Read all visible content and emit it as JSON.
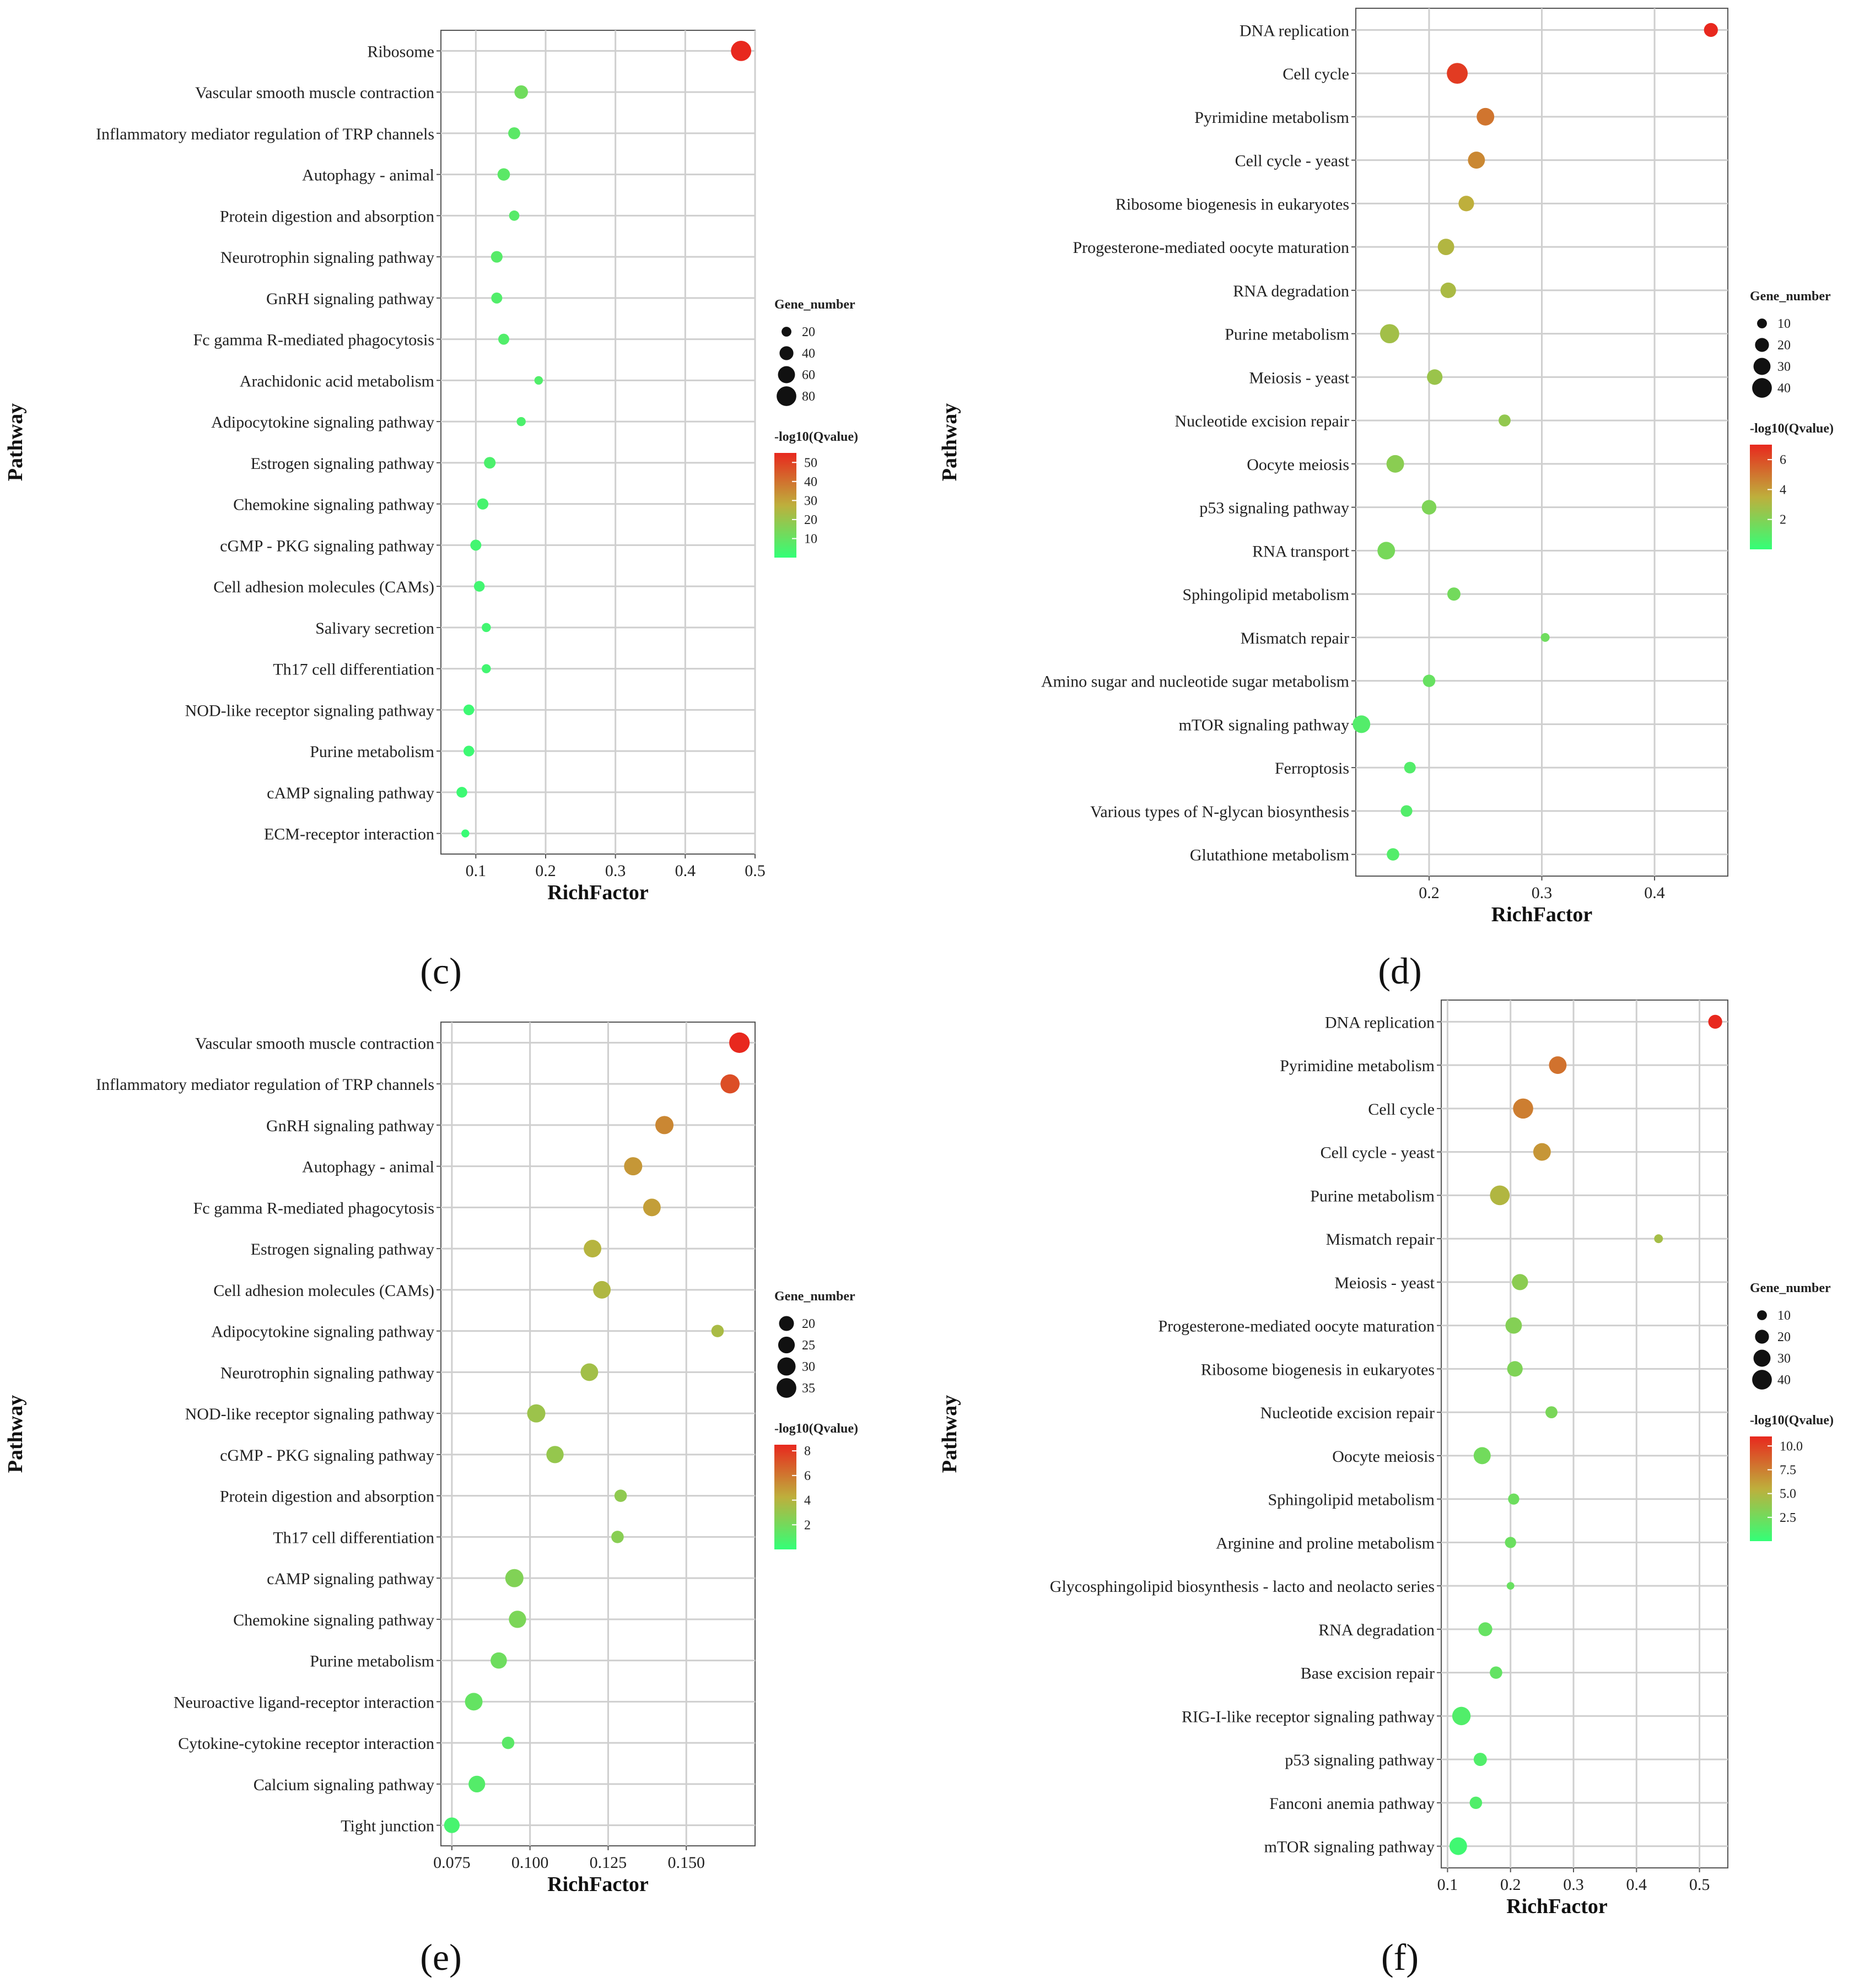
{
  "chart_data": [
    {
      "type": "scatter",
      "panel_label": "(c)",
      "xlabel": "RichFactor",
      "ylabel": "Pathway",
      "xlim": [
        0.05,
        0.5
      ],
      "xticks": [
        0.1,
        0.2,
        0.3,
        0.4,
        0.5
      ],
      "xtick_labels": [
        "0.1",
        "0.2",
        "0.3",
        "0.4",
        "0.5"
      ],
      "size_legend_title": "Gene_number",
      "size_legend": [
        20,
        40,
        60,
        80
      ],
      "size_range": [
        20,
        80
      ],
      "color_legend_title": "-log10(Qvalue)",
      "color_ticks": [
        50,
        40,
        30,
        20,
        10
      ],
      "color_tick_labels": [
        "50",
        "40",
        "30",
        "20",
        "10"
      ],
      "color_range": [
        0,
        55
      ],
      "color_low": "#33ff77",
      "color_high": "#e8281e",
      "points": [
        {
          "pathway": "Ribosome",
          "x": 0.48,
          "size": 85,
          "q": 55
        },
        {
          "pathway": "Vascular smooth muscle contraction",
          "x": 0.165,
          "size": 38,
          "q": 12
        },
        {
          "pathway": "Inflammatory mediator regulation of TRP channels",
          "x": 0.155,
          "size": 30,
          "q": 8
        },
        {
          "pathway": "Autophagy - animal",
          "x": 0.14,
          "size": 32,
          "q": 8
        },
        {
          "pathway": "Protein digestion and absorption",
          "x": 0.155,
          "size": 22,
          "q": 7
        },
        {
          "pathway": "Neurotrophin signaling pathway",
          "x": 0.13,
          "size": 28,
          "q": 7
        },
        {
          "pathway": "GnRH signaling pathway",
          "x": 0.13,
          "size": 25,
          "q": 6
        },
        {
          "pathway": "Fc gamma R-mediated phagocytosis",
          "x": 0.14,
          "size": 25,
          "q": 6
        },
        {
          "pathway": "Arachidonic acid metabolism",
          "x": 0.19,
          "size": 15,
          "q": 6
        },
        {
          "pathway": "Adipocytokine signaling pathway",
          "x": 0.165,
          "size": 17,
          "q": 5
        },
        {
          "pathway": "Estrogen signaling pathway",
          "x": 0.12,
          "size": 28,
          "q": 5
        },
        {
          "pathway": "Chemokine signaling pathway",
          "x": 0.11,
          "size": 26,
          "q": 4
        },
        {
          "pathway": "cGMP - PKG signaling pathway",
          "x": 0.1,
          "size": 25,
          "q": 3
        },
        {
          "pathway": "Cell adhesion molecules (CAMs)",
          "x": 0.105,
          "size": 24,
          "q": 3
        },
        {
          "pathway": "Salivary secretion",
          "x": 0.115,
          "size": 17,
          "q": 3
        },
        {
          "pathway": "Th17 cell differentiation",
          "x": 0.115,
          "size": 17,
          "q": 3
        },
        {
          "pathway": "NOD-like receptor signaling pathway",
          "x": 0.09,
          "size": 24,
          "q": 2
        },
        {
          "pathway": "Purine metabolism",
          "x": 0.09,
          "size": 24,
          "q": 2
        },
        {
          "pathway": "cAMP signaling pathway",
          "x": 0.08,
          "size": 24,
          "q": 2
        },
        {
          "pathway": "ECM-receptor interaction",
          "x": 0.085,
          "size": 13,
          "q": 1
        }
      ]
    },
    {
      "type": "scatter",
      "panel_label": "(d)",
      "xlabel": "RichFactor",
      "ylabel": "Pathway",
      "xlim": [
        0.135,
        0.465
      ],
      "xticks": [
        0.2,
        0.3,
        0.4
      ],
      "xtick_labels": [
        "0.2",
        "0.3",
        "0.4"
      ],
      "size_legend_title": "Gene_number",
      "size_legend": [
        10,
        20,
        30,
        40
      ],
      "size_range": [
        10,
        40
      ],
      "color_legend_title": "-log10(Qvalue)",
      "color_ticks": [
        6,
        4,
        2
      ],
      "color_tick_labels": [
        "6",
        "4",
        "2"
      ],
      "color_range": [
        0,
        7
      ],
      "color_low": "#33ff77",
      "color_high": "#e8281e",
      "points": [
        {
          "pathway": "DNA replication",
          "x": 0.45,
          "size": 20,
          "q": 7
        },
        {
          "pathway": "Cell cycle",
          "x": 0.225,
          "size": 45,
          "q": 6.5
        },
        {
          "pathway": "Pyrimidine metabolism",
          "x": 0.25,
          "size": 32,
          "q": 5
        },
        {
          "pathway": "Cell cycle - yeast",
          "x": 0.242,
          "size": 30,
          "q": 4.5
        },
        {
          "pathway": "Ribosome biogenesis in eukaryotes",
          "x": 0.233,
          "size": 25,
          "q": 3.5
        },
        {
          "pathway": "Progesterone-mediated oocyte maturation",
          "x": 0.215,
          "size": 28,
          "q": 3.2
        },
        {
          "pathway": "RNA degradation",
          "x": 0.217,
          "size": 25,
          "q": 3
        },
        {
          "pathway": "Purine metabolism",
          "x": 0.165,
          "size": 38,
          "q": 2.8
        },
        {
          "pathway": "Meiosis - yeast",
          "x": 0.205,
          "size": 25,
          "q": 2.6
        },
        {
          "pathway": "Nucleotide excision repair",
          "x": 0.267,
          "size": 15,
          "q": 2.4
        },
        {
          "pathway": "Oocyte meiosis",
          "x": 0.17,
          "size": 32,
          "q": 2.2
        },
        {
          "pathway": "p53 signaling pathway",
          "x": 0.2,
          "size": 22,
          "q": 1.9
        },
        {
          "pathway": "RNA transport",
          "x": 0.162,
          "size": 32,
          "q": 1.7
        },
        {
          "pathway": "Sphingolipid metabolism",
          "x": 0.222,
          "size": 18,
          "q": 1.6
        },
        {
          "pathway": "Mismatch repair",
          "x": 0.303,
          "size": 8,
          "q": 1.5
        },
        {
          "pathway": "Amino sugar and nucleotide sugar metabolism",
          "x": 0.2,
          "size": 16,
          "q": 1.3
        },
        {
          "pathway": "mTOR signaling pathway",
          "x": 0.14,
          "size": 32,
          "q": 0.8
        },
        {
          "pathway": "Ferroptosis",
          "x": 0.183,
          "size": 14,
          "q": 0.8
        },
        {
          "pathway": "Various types of N-glycan biosynthesis",
          "x": 0.18,
          "size": 14,
          "q": 0.8
        },
        {
          "pathway": "Glutathione metabolism",
          "x": 0.168,
          "size": 16,
          "q": 0.8
        }
      ]
    },
    {
      "type": "scatter",
      "panel_label": "(e)",
      "xlabel": "RichFactor",
      "ylabel": "Pathway",
      "xlim": [
        0.0715,
        0.172
      ],
      "xticks": [
        0.075,
        0.1,
        0.125,
        0.15
      ],
      "xtick_labels": [
        "0.075",
        "0.100",
        "0.125",
        "0.150"
      ],
      "size_legend_title": "Gene_number",
      "size_legend": [
        20,
        25,
        30,
        35
      ],
      "size_range": [
        20,
        35
      ],
      "color_legend_title": "-log10(Qvalue)",
      "color_ticks": [
        8,
        6,
        4,
        2
      ],
      "color_tick_labels": [
        "8",
        "6",
        "4",
        "2"
      ],
      "color_range": [
        0,
        8.5
      ],
      "color_low": "#33ff77",
      "color_high": "#e8281e",
      "points": [
        {
          "pathway": "Vascular smooth muscle contraction",
          "x": 0.167,
          "size": 38,
          "q": 8.5
        },
        {
          "pathway": "Inflammatory mediator regulation of TRP channels",
          "x": 0.164,
          "size": 33,
          "q": 7.3
        },
        {
          "pathway": "GnRH signaling pathway",
          "x": 0.143,
          "size": 30,
          "q": 5.5
        },
        {
          "pathway": "Autophagy - animal",
          "x": 0.133,
          "size": 30,
          "q": 5
        },
        {
          "pathway": "Fc gamma R-mediated phagocytosis",
          "x": 0.139,
          "size": 28,
          "q": 4.8
        },
        {
          "pathway": "Estrogen signaling pathway",
          "x": 0.12,
          "size": 28,
          "q": 4
        },
        {
          "pathway": "Cell adhesion molecules (CAMs)",
          "x": 0.123,
          "size": 28,
          "q": 3.8
        },
        {
          "pathway": "Adipocytokine signaling pathway",
          "x": 0.16,
          "size": 14,
          "q": 3.6
        },
        {
          "pathway": "Neurotrophin signaling pathway",
          "x": 0.119,
          "size": 28,
          "q": 3.4
        },
        {
          "pathway": "NOD-like receptor signaling pathway",
          "x": 0.102,
          "size": 30,
          "q": 3.2
        },
        {
          "pathway": "cGMP - PKG signaling pathway",
          "x": 0.108,
          "size": 27,
          "q": 3
        },
        {
          "pathway": "Protein digestion and absorption",
          "x": 0.129,
          "size": 14,
          "q": 2.8
        },
        {
          "pathway": "Th17 cell differentiation",
          "x": 0.128,
          "size": 14,
          "q": 2.6
        },
        {
          "pathway": "cAMP signaling pathway",
          "x": 0.095,
          "size": 30,
          "q": 2.4
        },
        {
          "pathway": "Chemokine signaling pathway",
          "x": 0.096,
          "size": 27,
          "q": 2.2
        },
        {
          "pathway": "Purine metabolism",
          "x": 0.09,
          "size": 24,
          "q": 1.8
        },
        {
          "pathway": "Neuroactive ligand-receptor interaction",
          "x": 0.082,
          "size": 28,
          "q": 1.5
        },
        {
          "pathway": "Cytokine-cytokine receptor interaction",
          "x": 0.093,
          "size": 14,
          "q": 1.2
        },
        {
          "pathway": "Calcium signaling pathway",
          "x": 0.083,
          "size": 25,
          "q": 1
        },
        {
          "pathway": "Tight junction",
          "x": 0.075,
          "size": 22,
          "q": 0.6
        }
      ]
    },
    {
      "type": "scatter",
      "panel_label": "(f)",
      "xlabel": "RichFactor",
      "ylabel": "Pathway",
      "xlim": [
        0.09,
        0.545
      ],
      "xticks": [
        0.1,
        0.2,
        0.3,
        0.4,
        0.5
      ],
      "xtick_labels": [
        "0.1",
        "0.2",
        "0.3",
        "0.4",
        "0.5"
      ],
      "size_legend_title": "Gene_number",
      "size_legend": [
        10,
        20,
        30,
        40
      ],
      "size_range": [
        10,
        40
      ],
      "color_legend_title": "-log10(Qvalue)",
      "color_ticks": [
        10.0,
        7.5,
        5.0,
        2.5
      ],
      "color_tick_labels": [
        "10.0",
        "7.5",
        "5.0",
        "2.5"
      ],
      "color_range": [
        0,
        11
      ],
      "color_low": "#33ff77",
      "color_high": "#e8281e",
      "points": [
        {
          "pathway": "DNA replication",
          "x": 0.525,
          "size": 20,
          "q": 11
        },
        {
          "pathway": "Pyrimidine metabolism",
          "x": 0.275,
          "size": 32,
          "q": 8
        },
        {
          "pathway": "Cell cycle",
          "x": 0.22,
          "size": 42,
          "q": 7.5
        },
        {
          "pathway": "Cell cycle - yeast",
          "x": 0.25,
          "size": 32,
          "q": 6.5
        },
        {
          "pathway": "Purine metabolism",
          "x": 0.183,
          "size": 40,
          "q": 5
        },
        {
          "pathway": "Mismatch repair",
          "x": 0.435,
          "size": 8,
          "q": 4.5
        },
        {
          "pathway": "Meiosis - yeast",
          "x": 0.215,
          "size": 27,
          "q": 3.5
        },
        {
          "pathway": "Progesterone-mediated oocyte maturation",
          "x": 0.205,
          "size": 28,
          "q": 3.2
        },
        {
          "pathway": "Ribosome biogenesis in eukaryotes",
          "x": 0.207,
          "size": 25,
          "q": 3
        },
        {
          "pathway": "Nucleotide excision repair",
          "x": 0.265,
          "size": 15,
          "q": 2.8
        },
        {
          "pathway": "Oocyte meiosis",
          "x": 0.155,
          "size": 30,
          "q": 2.5
        },
        {
          "pathway": "Sphingolipid metabolism",
          "x": 0.205,
          "size": 13,
          "q": 2.3
        },
        {
          "pathway": "Arginine and proline metabolism",
          "x": 0.2,
          "size": 13,
          "q": 2.2
        },
        {
          "pathway": "Glycosphingolipid biosynthesis - lacto and neolacto series",
          "x": 0.2,
          "size": 6,
          "q": 2.1
        },
        {
          "pathway": "RNA degradation",
          "x": 0.16,
          "size": 20,
          "q": 2
        },
        {
          "pathway": "Base excision repair",
          "x": 0.177,
          "size": 16,
          "q": 1.9
        },
        {
          "pathway": "RIG-I-like receptor signaling pathway",
          "x": 0.122,
          "size": 35,
          "q": 1.2
        },
        {
          "pathway": "p53 signaling pathway",
          "x": 0.152,
          "size": 18,
          "q": 1.2
        },
        {
          "pathway": "Fanconi anemia pathway",
          "x": 0.145,
          "size": 16,
          "q": 1.2
        },
        {
          "pathway": "mTOR signaling pathway",
          "x": 0.117,
          "size": 32,
          "q": 0.5
        }
      ]
    }
  ]
}
